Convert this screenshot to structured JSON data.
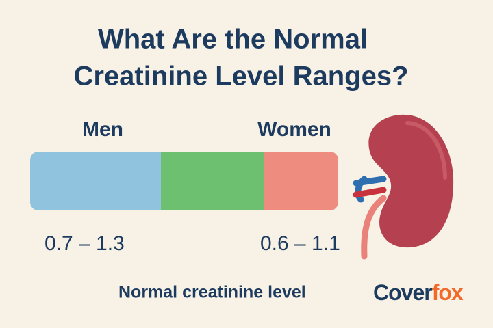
{
  "title": {
    "lines": [
      "What Are the Normal",
      "Creatinine Level Ranges?"
    ]
  },
  "groups": [
    {
      "label": "Men",
      "range": "0.7 – 1.3"
    },
    {
      "label": "Women",
      "range": "0.6 – 1.1"
    }
  ],
  "caption": "Normal creatinine level",
  "brand": {
    "first": "Cover",
    "second": "fox"
  }
}
